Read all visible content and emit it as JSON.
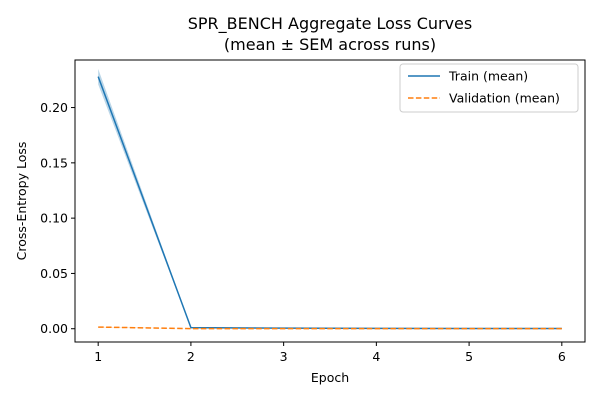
{
  "chart_data": {
    "type": "line",
    "title": "SPR_BENCH Aggregate Loss Curves",
    "subtitle": "(mean ± SEM across runs)",
    "xlabel": "Epoch",
    "ylabel": "Cross-Entropy Loss",
    "x": [
      1,
      2,
      3,
      4,
      5,
      6
    ],
    "xlim": [
      0.75,
      6.25
    ],
    "ylim": [
      -0.012,
      0.243
    ],
    "xticks": [
      "1",
      "2",
      "3",
      "4",
      "5",
      "6"
    ],
    "yticks": [
      "0.00",
      "0.05",
      "0.10",
      "0.15",
      "0.20"
    ],
    "ytick_values": [
      0.0,
      0.05,
      0.1,
      0.15,
      0.2
    ],
    "grid": false,
    "legend_position": "top-right",
    "series": [
      {
        "name": "Train (mean)",
        "values": [
          0.228,
          0.001,
          0.0005,
          0.0003,
          0.0002,
          0.0002
        ],
        "sem": [
          0.007,
          0.0005,
          0.0002,
          0.0001,
          0.0001,
          0.0001
        ],
        "color": "#1f77b4",
        "style": "solid"
      },
      {
        "name": "Validation (mean)",
        "values": [
          0.0015,
          0.0001,
          0.0001,
          0.0001,
          0.0001,
          0.0001
        ],
        "sem": [
          0.0003,
          5e-05,
          5e-05,
          5e-05,
          5e-05,
          5e-05
        ],
        "color": "#ff7f0e",
        "style": "dashed"
      }
    ]
  }
}
